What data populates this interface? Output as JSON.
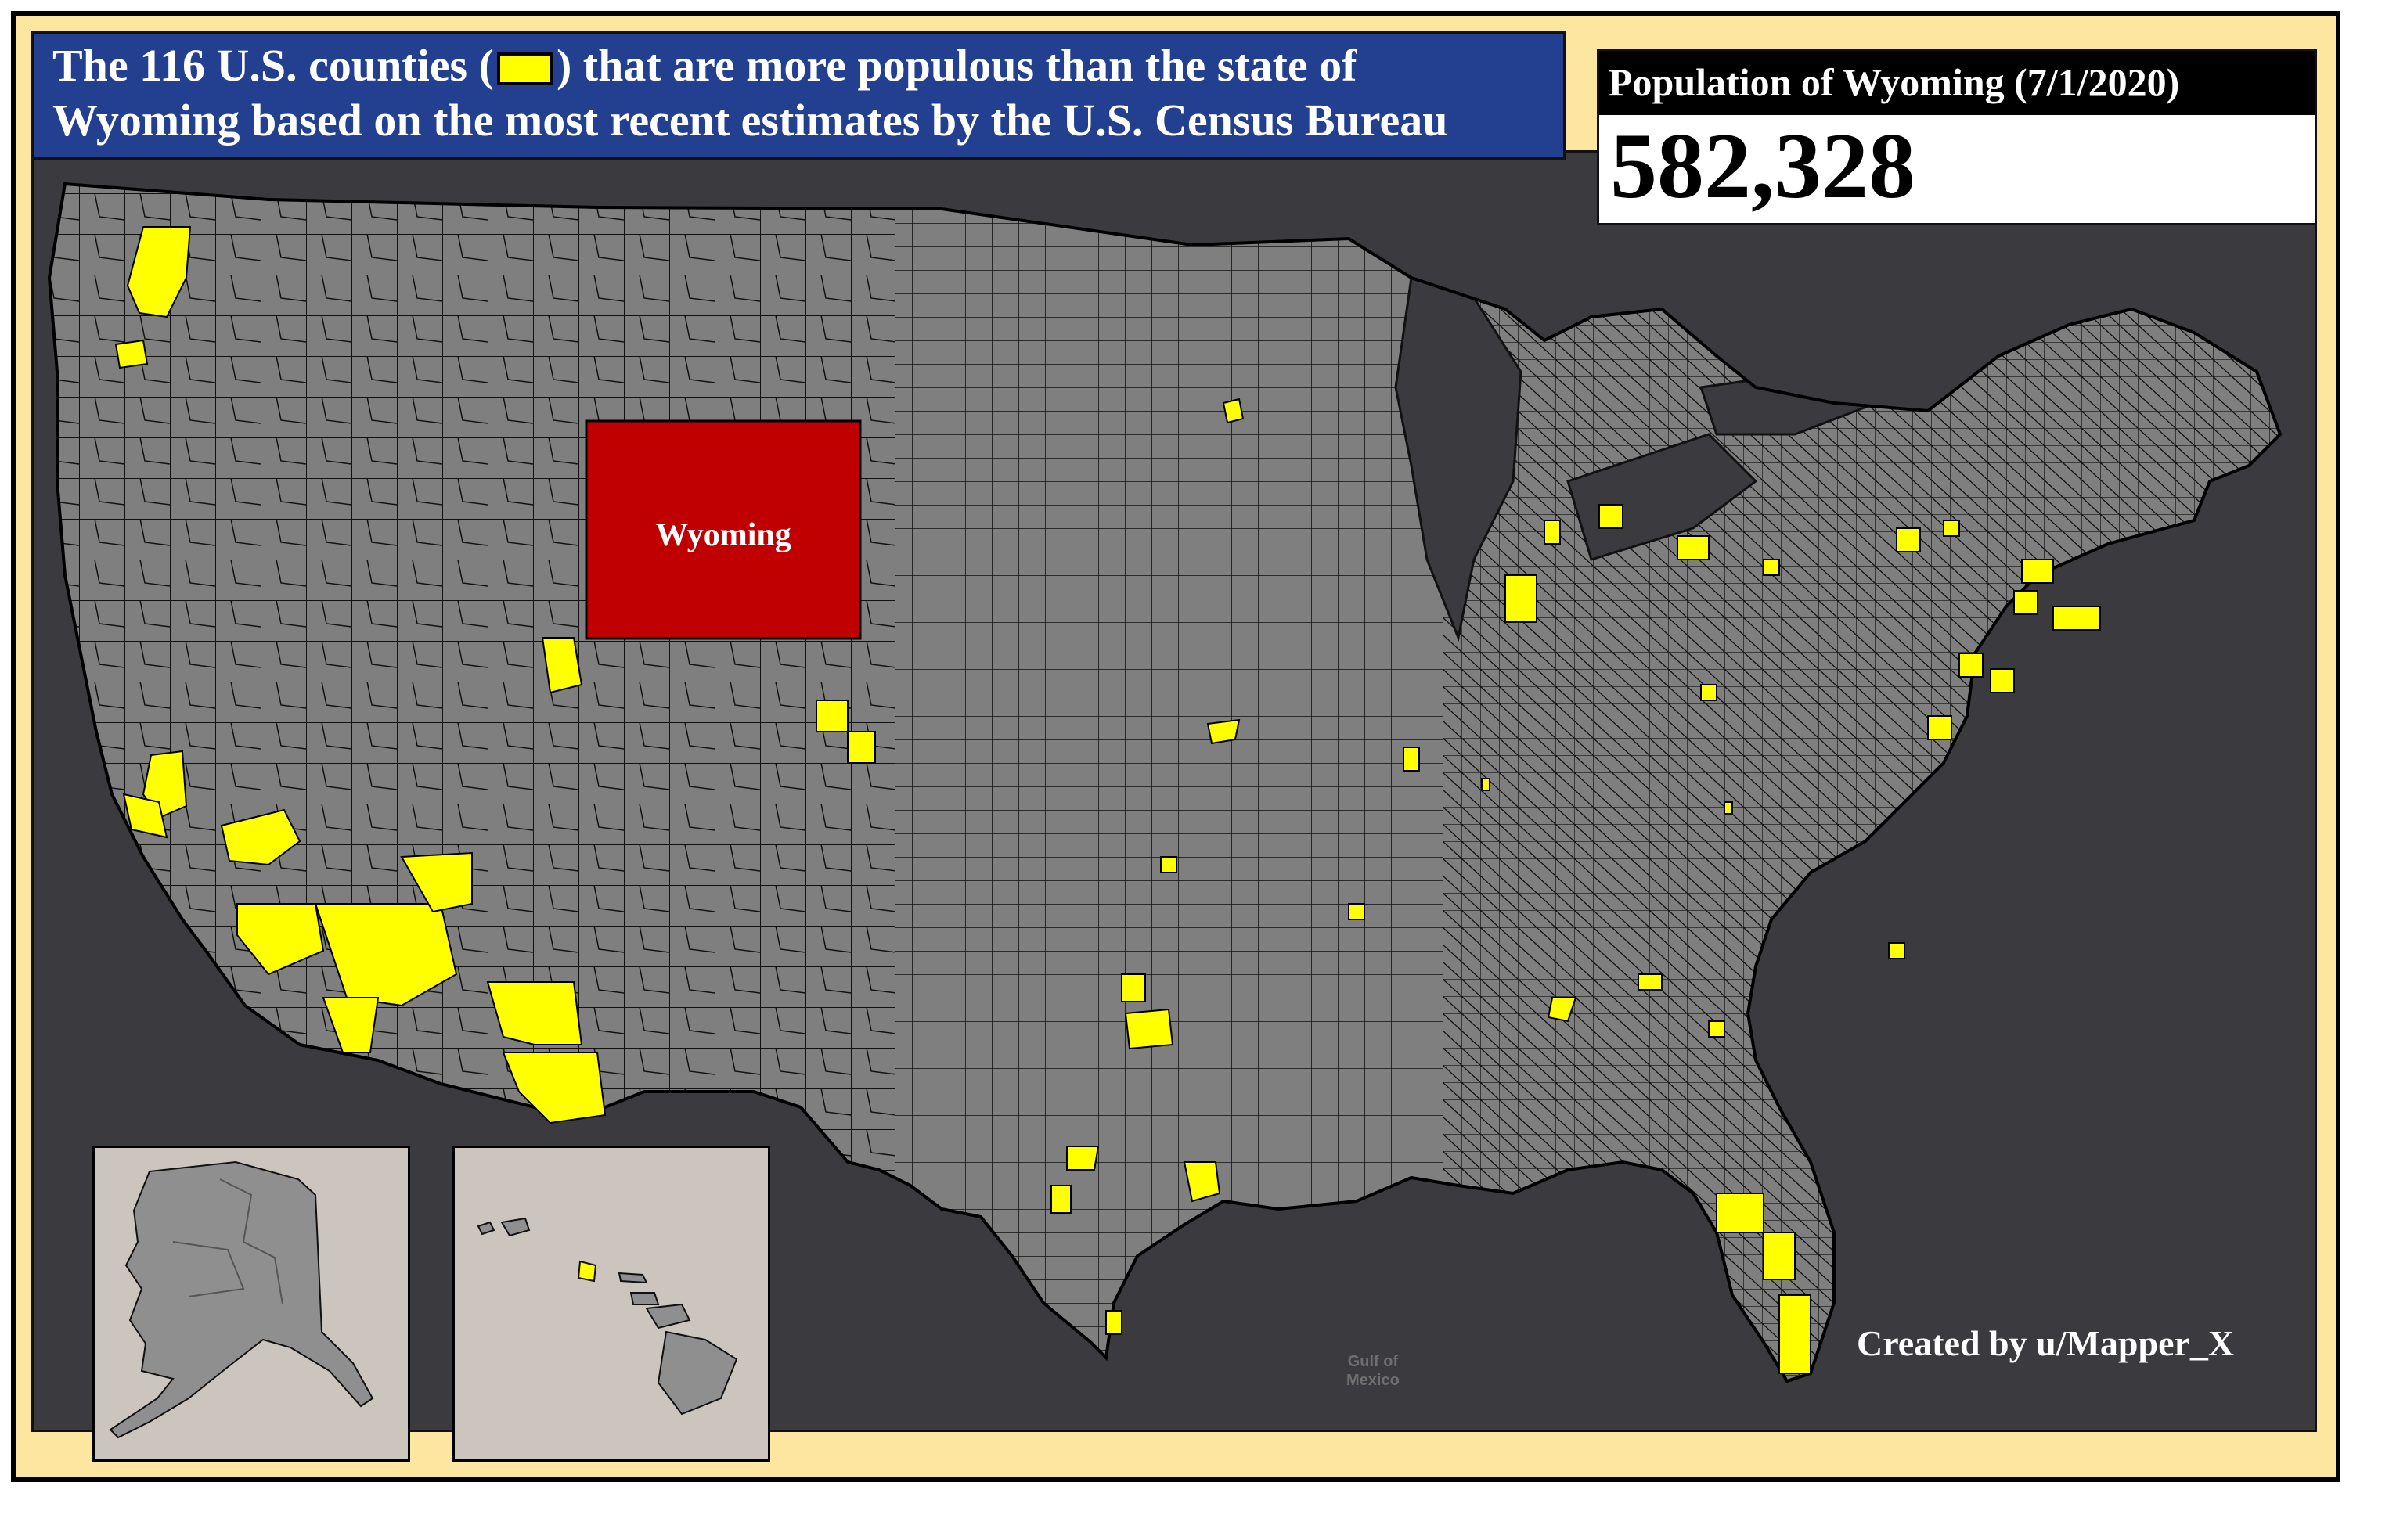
{
  "title": {
    "line1_before_swatch": "The 116 U.S. counties (",
    "line1_after_swatch": ") that are more populous than the state of",
    "line2": "Wyoming based on the most recent estimates by the U.S. Census Bureau"
  },
  "population_box": {
    "header": "Population of Wyoming (7/1/2020)",
    "value": "582,328"
  },
  "map": {
    "highlighted_state_label": "Wyoming",
    "water_label_line1": "Gulf of",
    "water_label_line2": "Mexico",
    "insets": [
      "Alaska",
      "Hawaii"
    ]
  },
  "credit": "Created by u/Mapper_X",
  "colors": {
    "frame_background": "#fde6a0",
    "title_background": "#233f8f",
    "map_water": "#3a3a3f",
    "land": "#808080",
    "county_highlight": "#ffff00",
    "wyoming_fill": "#c00000",
    "inset_background": "#cbc5bd"
  }
}
